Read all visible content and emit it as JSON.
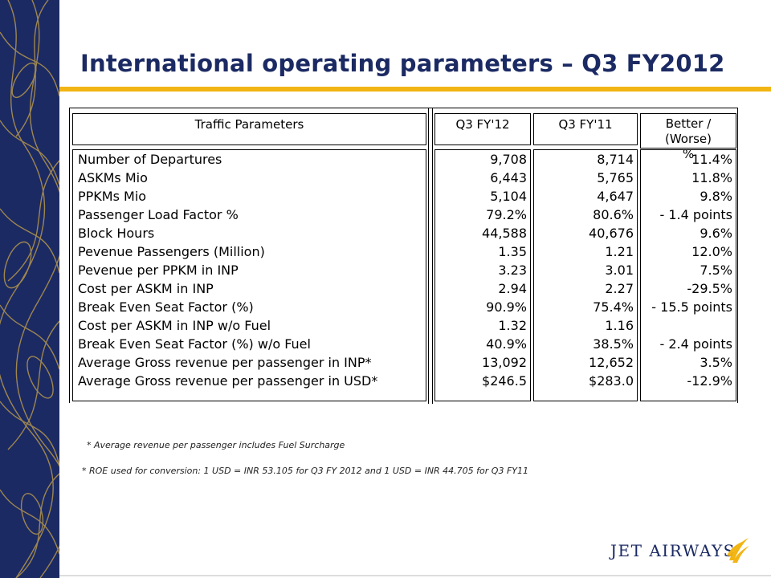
{
  "slide": {
    "title": "International operating parameters – Q3 FY2012"
  },
  "table": {
    "headers": {
      "param": "Traffic Parameters",
      "q3fy12": "Q3 FY'12",
      "q3fy11": "Q3 FY'11",
      "better_line1": "Better / (Worse)",
      "better_line2": "%"
    },
    "rows": [
      {
        "label": "Number of Departures",
        "q3fy12": "9,708",
        "q3fy11": "8,714",
        "better": "11.4%"
      },
      {
        "label": "ASKMs Mio",
        "q3fy12": "6,443",
        "q3fy11": "5,765",
        "better": "11.8%"
      },
      {
        "label": "PPKMs Mio",
        "q3fy12": "5,104",
        "q3fy11": "4,647",
        "better": "9.8%"
      },
      {
        "label": "Passenger Load Factor %",
        "q3fy12": "79.2%",
        "q3fy11": "80.6%",
        "better": "- 1.4 points"
      },
      {
        "label": "Block Hours",
        "q3fy12": "44,588",
        "q3fy11": "40,676",
        "better": "9.6%"
      },
      {
        "label": "Pevenue Passengers (Million)",
        "q3fy12": "1.35",
        "q3fy11": "1.21",
        "better": "12.0%"
      },
      {
        "label": "Pevenue per PPKM in INP",
        "q3fy12": "3.23",
        "q3fy11": "3.01",
        "better": "7.5%"
      },
      {
        "label": "Cost per ASKM in INP",
        "q3fy12": "2.94",
        "q3fy11": "2.27",
        "better": "-29.5%"
      },
      {
        "label": "Break Even Seat Factor (%)",
        "q3fy12": "90.9%",
        "q3fy11": "75.4%",
        "better": "- 15.5 points"
      },
      {
        "label": "Cost per ASKM in INP w/o Fuel",
        "q3fy12": "1.32",
        "q3fy11": "1.16",
        "better": ""
      },
      {
        "label": "Break Even Seat Factor (%) w/o Fuel",
        "q3fy12": "40.9%",
        "q3fy11": "38.5%",
        "better": "- 2.4 points"
      },
      {
        "label": "Average Gross revenue per passenger in INP*",
        "q3fy12": "13,092",
        "q3fy11": "12,652",
        "better": "3.5%"
      },
      {
        "label": "Average Gross revenue per passenger in USD*",
        "q3fy12": "$246.5",
        "q3fy11": "$283.0",
        "better": "-12.9%"
      }
    ]
  },
  "notes": {
    "note1": "* Average revenue per passenger includes Fuel Surcharge",
    "note2": "* ROE used for conversion: 1 USD = INR 53.105 for Q3 FY 2012 and 1 USD = INR 44.705 for Q3 FY11"
  },
  "logo": {
    "text": "JET AIRWAYS",
    "icon": "jet-airways-sun-icon"
  },
  "colors": {
    "sidebar": "#1c2a63",
    "sidebar_pattern": "#c9a54a",
    "title": "#1b2a63",
    "rule": "#f2b514",
    "logo_mark": "#f2b514"
  }
}
